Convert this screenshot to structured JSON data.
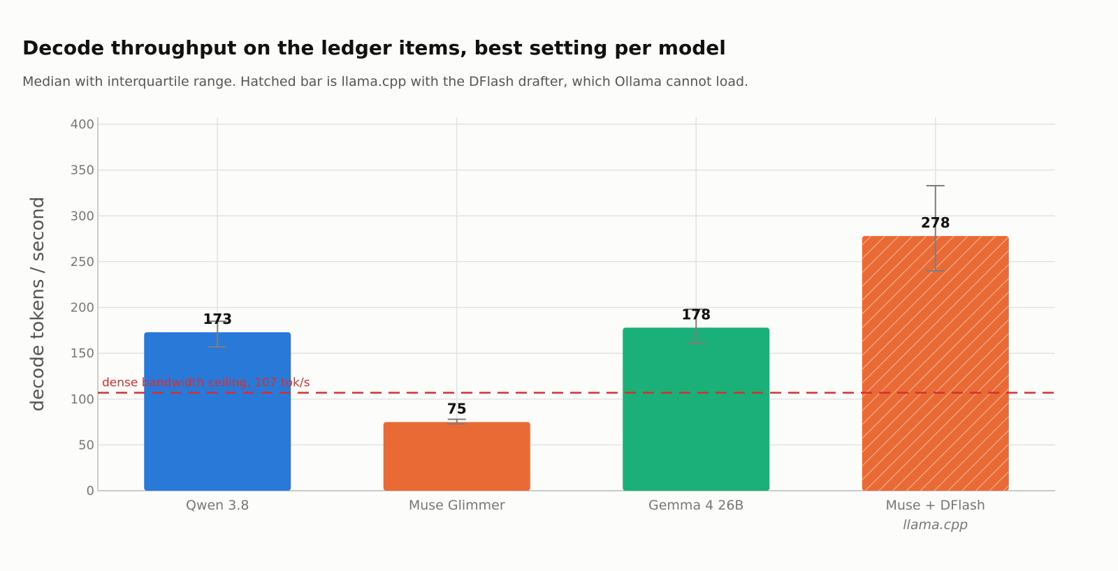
{
  "chart_data": {
    "type": "bar",
    "title": "Decode throughput on the ledger items, best setting per model",
    "subtitle": "Median with interquartile range. Hatched bar is llama.cpp with the DFlash drafter, which Ollama cannot load.",
    "xlabel": "",
    "ylabel": "decode tokens / second",
    "ylim": [
      0,
      400
    ],
    "yticks": [
      0,
      50,
      100,
      150,
      200,
      250,
      300,
      350,
      400
    ],
    "grid": true,
    "categories": [
      "Qwen 3.8",
      "Muse Glimmer",
      "Gemma 4 26B",
      "Muse + DFlash"
    ],
    "category_notes": [
      "",
      "",
      "",
      "llama.cpp"
    ],
    "values": [
      173,
      75,
      178,
      278
    ],
    "value_labels": [
      "173",
      "75",
      "178",
      "278"
    ],
    "iqr_low": [
      157,
      73,
      161,
      240
    ],
    "iqr_high": [
      185,
      78,
      198,
      333
    ],
    "colors": [
      "#2979d8",
      "#ea6a36",
      "#1bb07a",
      "#ea6a36"
    ],
    "hatched": [
      false,
      false,
      false,
      true
    ],
    "reference_line": {
      "value": 107,
      "label": "dense bandwidth ceiling, 107 tok/s",
      "color": "#d62f2f"
    }
  }
}
